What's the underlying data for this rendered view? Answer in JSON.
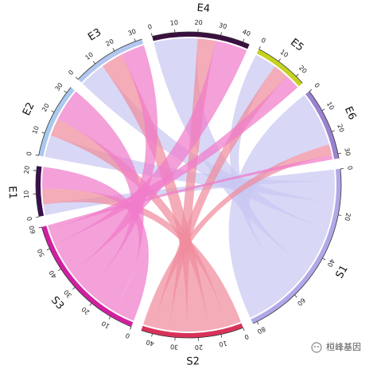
{
  "chart_data": {
    "type": "chord",
    "rows": [
      {
        "name": "E1",
        "color": "#3b0f4f",
        "ticks": [
          0,
          10,
          20
        ]
      },
      {
        "name": "E2",
        "color": "#a9c9ee",
        "ticks": [
          0,
          10,
          20,
          30
        ]
      },
      {
        "name": "E3",
        "color": "#b3c6f0",
        "ticks": [
          0,
          10,
          20,
          30
        ]
      },
      {
        "name": "E4",
        "color": "#3a1040",
        "ticks": [
          0,
          10,
          20,
          30,
          40
        ]
      },
      {
        "name": "E5",
        "color": "#c5d21e",
        "ticks": [
          0,
          10,
          20
        ]
      },
      {
        "name": "E6",
        "color": "#9a82d0",
        "ticks": [
          0,
          10,
          20,
          30
        ]
      }
    ],
    "columns": [
      {
        "name": "S1",
        "color": "#b0a8e8",
        "link_color": "#c9c8f2",
        "ticks": [
          0,
          20,
          40,
          60,
          80
        ]
      },
      {
        "name": "S2",
        "color": "#d8325a",
        "link_color": "#f08c9c",
        "ticks": [
          0,
          10,
          20,
          30,
          40
        ]
      },
      {
        "name": "S3",
        "color": "#d020a0",
        "link_color": "#f07ccb",
        "ticks": [
          0,
          10,
          20,
          30,
          40,
          50,
          60
        ]
      }
    ],
    "matrix": [
      [
        5,
        7,
        10
      ],
      [
        10,
        8,
        15
      ],
      [
        12,
        10,
        11
      ],
      [
        20,
        8,
        15
      ],
      [
        10,
        7,
        7
      ],
      [
        25,
        5,
        2
      ]
    ],
    "watermark": "桓峰基因"
  }
}
